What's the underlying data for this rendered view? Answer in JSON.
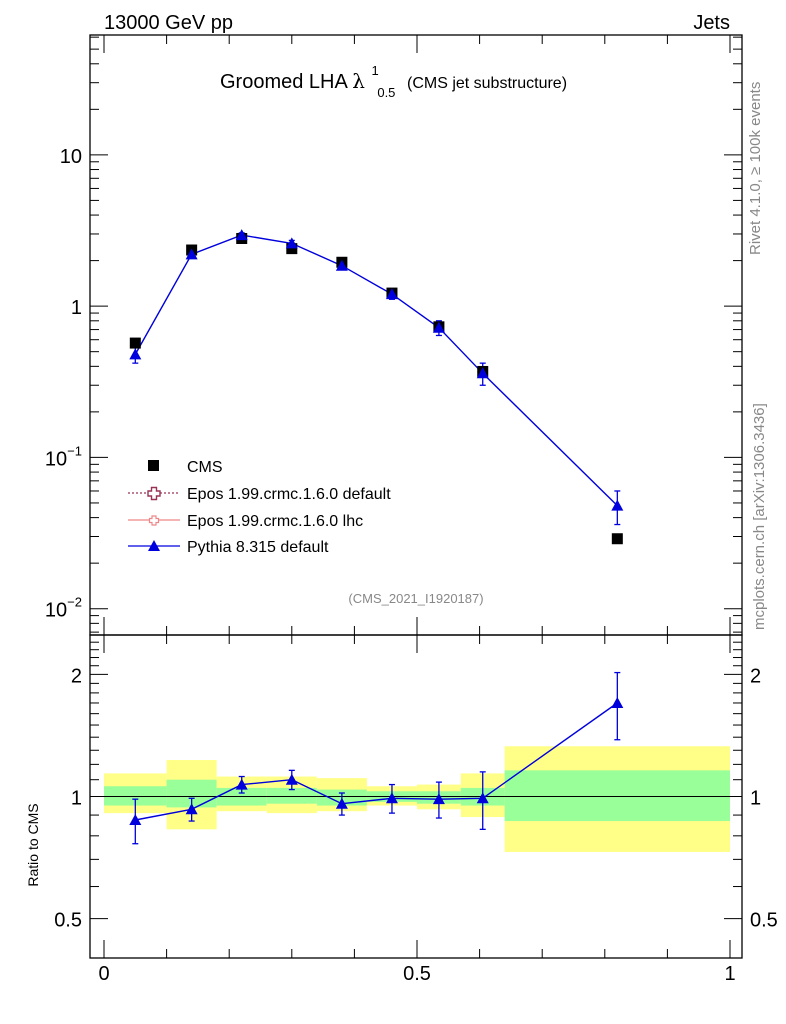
{
  "header": {
    "energy": "13000 GeV pp",
    "category": "Jets"
  },
  "side_text": {
    "rivet": "Rivet 4.1.0, ≥ 100k events",
    "mcplots": "mcplots.cern.ch [arXiv:1306.3436]"
  },
  "chart_data": {
    "type": "scatter",
    "title": {
      "main": "Groomed LHA",
      "symbol": "λ",
      "superscript": "1",
      "subscript": "0.5",
      "suffix": "(CMS jet substructure)"
    },
    "analysis_id": "(CMS_2021_I1920187)",
    "x": {
      "range": [
        0,
        1
      ],
      "tick_labels": [
        "0",
        "0.5",
        "1"
      ],
      "tick_values": [
        0,
        0.5,
        1
      ]
    },
    "y_main": {
      "scale": "log",
      "range": [
        0.0067,
        62
      ],
      "major_ticks": [
        {
          "value": 0.01,
          "base": "10",
          "exp": "−2"
        },
        {
          "value": 0.1,
          "base": "10",
          "exp": "−1"
        },
        {
          "value": 1,
          "base": "1",
          "exp": ""
        },
        {
          "value": 10,
          "base": "10",
          "exp": ""
        }
      ]
    },
    "y_ratio": {
      "label": "Ratio to CMS",
      "scale": "log",
      "range": [
        0.4,
        2.5
      ],
      "tick_labels": [
        "0.5",
        "1",
        "2"
      ],
      "tick_values": [
        0.5,
        1,
        2
      ]
    },
    "legend": {
      "position": "bottom-left",
      "entries": [
        {
          "name": "CMS",
          "marker": "square",
          "color": "#000000"
        },
        {
          "name": "Epos 1.99.crmc.1.6.0 default",
          "marker": "open-cross",
          "color": "#993355",
          "line": "dotted"
        },
        {
          "name": "Epos 1.99.crmc.1.6.0 lhc",
          "marker": "open-cross",
          "color": "#ee8888",
          "line": "solid"
        },
        {
          "name": "Pythia 8.315 default",
          "marker": "triangle",
          "color": "#0000dd",
          "line": "solid"
        }
      ]
    },
    "bins": [
      {
        "lo": 0.0,
        "hi": 0.1
      },
      {
        "lo": 0.1,
        "hi": 0.18
      },
      {
        "lo": 0.18,
        "hi": 0.26
      },
      {
        "lo": 0.26,
        "hi": 0.34
      },
      {
        "lo": 0.34,
        "hi": 0.42
      },
      {
        "lo": 0.42,
        "hi": 0.5
      },
      {
        "lo": 0.5,
        "hi": 0.57
      },
      {
        "lo": 0.57,
        "hi": 0.64
      },
      {
        "lo": 0.64,
        "hi": 1.0
      }
    ],
    "cms": {
      "name": "CMS",
      "x": [
        0.05,
        0.14,
        0.22,
        0.3,
        0.38,
        0.46,
        0.535,
        0.605,
        0.82
      ],
      "y": [
        0.57,
        2.35,
        2.8,
        2.4,
        1.95,
        1.22,
        0.73,
        0.37,
        0.029
      ]
    },
    "pythia": {
      "name": "Pythia 8.315 default",
      "x": [
        0.05,
        0.14,
        0.22,
        0.3,
        0.38,
        0.46,
        0.535,
        0.605,
        0.82
      ],
      "y": [
        0.48,
        2.2,
        2.95,
        2.6,
        1.85,
        1.2,
        0.72,
        0.36,
        0.048
      ],
      "err": [
        0.06,
        0.12,
        0.1,
        0.12,
        0.1,
        0.09,
        0.08,
        0.06,
        0.012
      ]
    },
    "ratio": {
      "values": [
        0.875,
        0.93,
        1.07,
        1.1,
        0.96,
        0.99,
        0.985,
        0.99,
        1.7
      ],
      "err_lo": [
        0.11,
        0.06,
        0.05,
        0.06,
        0.06,
        0.08,
        0.1,
        0.16,
        0.32
      ],
      "err_hi": [
        0.11,
        0.06,
        0.05,
        0.06,
        0.06,
        0.08,
        0.1,
        0.16,
        0.32
      ],
      "band_stat": [
        [
          0.95,
          1.06
        ],
        [
          0.94,
          1.1
        ],
        [
          0.95,
          1.05
        ],
        [
          0.96,
          1.05
        ],
        [
          0.95,
          1.04
        ],
        [
          0.97,
          1.03
        ],
        [
          0.96,
          1.03
        ],
        [
          0.95,
          1.05
        ],
        [
          0.87,
          1.16
        ]
      ],
      "band_total": [
        [
          0.91,
          1.14
        ],
        [
          0.83,
          1.23
        ],
        [
          0.92,
          1.12
        ],
        [
          0.91,
          1.12
        ],
        [
          0.92,
          1.11
        ],
        [
          0.95,
          1.06
        ],
        [
          0.93,
          1.07
        ],
        [
          0.89,
          1.14
        ],
        [
          0.73,
          1.33
        ]
      ]
    },
    "colors": {
      "band_total": "#ffff88",
      "band_stat": "#99ff99",
      "pythia": "#0000dd",
      "cms": "#000000"
    }
  }
}
